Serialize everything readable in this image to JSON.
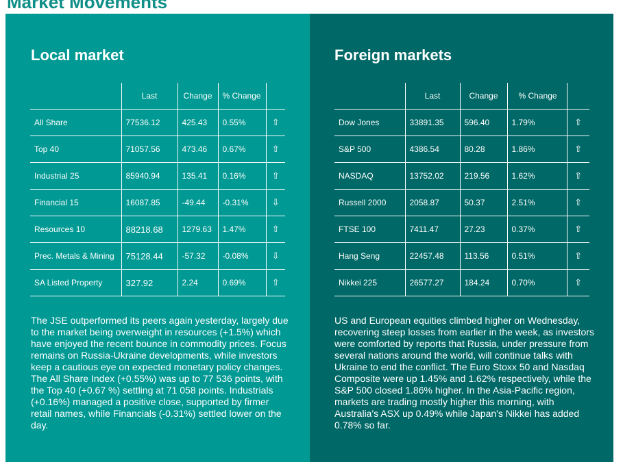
{
  "page": {
    "title": "Market Movements"
  },
  "colors": {
    "local_panel": "#009993",
    "foreign_panel": "#006866",
    "heading": "#0f8f88",
    "text": "#ffffff"
  },
  "local": {
    "title": "Local market",
    "headers": {
      "name": "",
      "last": "Last",
      "change": "Change",
      "pct_change": "% Change"
    },
    "rows": [
      {
        "name": "All Share",
        "last": "77536.12",
        "change": "425.43",
        "pct": "0.55%",
        "arrow": "⇧",
        "direction": "up"
      },
      {
        "name": "Top 40",
        "last": "71057.56",
        "change": "473.46",
        "pct": "0.67%",
        "arrow": "⇧",
        "direction": "up"
      },
      {
        "name": "Industrial 25",
        "last": "85940.94",
        "change": "135.41",
        "pct": "0.16%",
        "arrow": "⇧",
        "direction": "up"
      },
      {
        "name": "Financial 15",
        "last": "16087.85",
        "change": "-49.44",
        "pct": "-0.31%",
        "arrow": "⇩",
        "direction": "down"
      },
      {
        "name": "Resources 10",
        "last": "88218.68",
        "change": "1279.63",
        "pct": "1.47%",
        "arrow": "⇧",
        "direction": "up"
      },
      {
        "name": "Prec. Metals & Mining",
        "last": "75128.44",
        "change": "-57.32",
        "pct": "-0.08%",
        "arrow": "⇩",
        "direction": "down"
      },
      {
        "name": "SA Listed Property",
        "last": "327.92",
        "change": "2.24",
        "pct": "0.69%",
        "arrow": "⇧",
        "direction": "up"
      }
    ],
    "commentary": "The JSE outperformed its peers again yesterday, largely due to the market being overweight in resources (+1.5%) which have enjoyed the recent bounce in commodity prices. Focus remains on Russia-Ukraine developments, while investors keep a cautious eye on expected monetary policy changes. The All Share Index (+0.55%) was up to 77 536 points, with the Top 40 (+0.67 %) settling at 71 058 points. Industrials (+0.16%) managed a positive close, supported by firmer retail names, while Financials (-0.31%) settled lower on the day."
  },
  "foreign": {
    "title": "Foreign markets",
    "headers": {
      "name": "",
      "last": "Last",
      "change": "Change",
      "pct_change": "% Change"
    },
    "rows": [
      {
        "name": "Dow Jones",
        "last": "33891.35",
        "change": "596.40",
        "pct": "1.79%",
        "arrow": "⇧",
        "direction": "up"
      },
      {
        "name": "S&P 500",
        "last": "4386.54",
        "change": "80.28",
        "pct": "1.86%",
        "arrow": "⇧",
        "direction": "up"
      },
      {
        "name": "NASDAQ",
        "last": "13752.02",
        "change": "219.56",
        "pct": "1.62%",
        "arrow": "⇧",
        "direction": "up"
      },
      {
        "name": "Russell 2000",
        "last": "2058.87",
        "change": "50.37",
        "pct": "2.51%",
        "arrow": "⇧",
        "direction": "up"
      },
      {
        "name": "FTSE 100",
        "last": "7411.47",
        "change": "27.23",
        "pct": "0.37%",
        "arrow": "⇧",
        "direction": "up"
      },
      {
        "name": "Hang Seng",
        "last": "22457.48",
        "change": "113.56",
        "pct": "0.51%",
        "arrow": "⇧",
        "direction": "up"
      },
      {
        "name": "Nikkei 225",
        "last": "26577.27",
        "change": "184.24",
        "pct": "0.70%",
        "arrow": "⇧",
        "direction": "up"
      }
    ],
    "commentary": "US and European equities climbed higher on Wednesday, recovering steep losses from earlier in the week, as investors were comforted by reports that Russia, under pressure from several nations around the world, will continue talks with Ukraine to end the conflict. The Euro Stoxx 50 and Nasdaq Composite were up 1.45% and 1.62% respectively, while the S&P 500 closed 1.86% higher. In the Asia-Pacific region, markets are trading mostly higher this morning, with Australia's ASX up 0.49% while Japan's Nikkei has added 0.78% so far."
  }
}
